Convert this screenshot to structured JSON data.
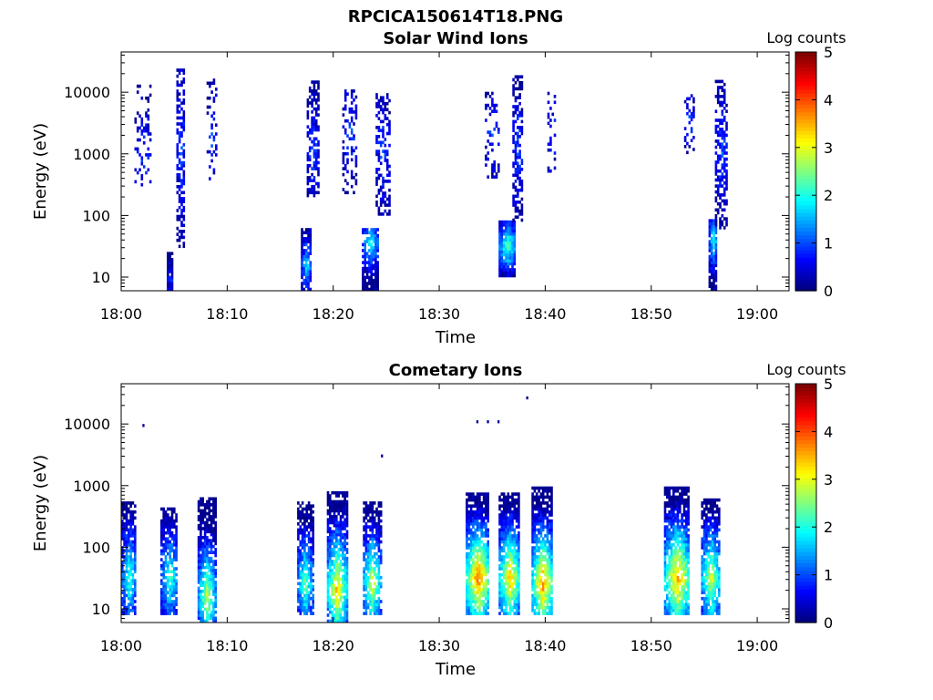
{
  "figure": {
    "title": "RPCICA150614T18.PNG"
  },
  "chart_data": [
    {
      "type": "heatmap",
      "title": "Solar Wind Ions",
      "xlabel": "Time",
      "ylabel": "Energy (eV)",
      "x_ticks": [
        "18:00",
        "18:10",
        "18:20",
        "18:30",
        "18:40",
        "18:50",
        "19:00"
      ],
      "x_range_min": [
        0,
        63
      ],
      "y_scale": "log",
      "y_ticks": [
        "10",
        "100",
        "1000",
        "10000"
      ],
      "y_tick_values": [
        10,
        100,
        1000,
        10000
      ],
      "y_range_eV": [
        6,
        45000
      ],
      "colorbar": {
        "title": "Log counts",
        "ticks": [
          "0",
          "1",
          "2",
          "3",
          "4",
          "5"
        ],
        "range": [
          0,
          5
        ],
        "colormap": "jet"
      },
      "bursts": [
        {
          "t_min": 2.0,
          "width_min": 1.5,
          "emin_eV": 300,
          "emax_eV": 12000,
          "peak_log": 1.0,
          "peak_eV": 1000,
          "density": 0.25
        },
        {
          "t_min": 4.6,
          "width_min": 0.6,
          "emin_eV": 6,
          "emax_eV": 25,
          "peak_log": 0.8,
          "peak_eV": 8,
          "density": 0.9
        },
        {
          "t_min": 5.6,
          "width_min": 0.8,
          "emin_eV": 30,
          "emax_eV": 22000,
          "peak_log": 1.0,
          "peak_eV": 1000,
          "density": 0.55
        },
        {
          "t_min": 8.5,
          "width_min": 0.9,
          "emin_eV": 300,
          "emax_eV": 18000,
          "peak_log": 1.0,
          "peak_eV": 2000,
          "density": 0.25
        },
        {
          "t_min": 17.4,
          "width_min": 0.9,
          "emin_eV": 6,
          "emax_eV": 60,
          "peak_log": 1.8,
          "peak_eV": 15,
          "density": 0.85
        },
        {
          "t_min": 18.0,
          "width_min": 1.0,
          "emin_eV": 200,
          "emax_eV": 15000,
          "peak_log": 1.0,
          "peak_eV": 1000,
          "density": 0.55
        },
        {
          "t_min": 21.5,
          "width_min": 1.3,
          "emin_eV": 200,
          "emax_eV": 10000,
          "peak_log": 1.0,
          "peak_eV": 2000,
          "density": 0.3
        },
        {
          "t_min": 23.4,
          "width_min": 1.4,
          "emin_eV": 6,
          "emax_eV": 60,
          "peak_log": 2.0,
          "peak_eV": 35,
          "density": 0.85
        },
        {
          "t_min": 24.6,
          "width_min": 1.2,
          "emin_eV": 100,
          "emax_eV": 9000,
          "peak_log": 1.0,
          "peak_eV": 1000,
          "density": 0.5
        },
        {
          "t_min": 35.0,
          "width_min": 1.4,
          "emin_eV": 400,
          "emax_eV": 10000,
          "peak_log": 1.0,
          "peak_eV": 2000,
          "density": 0.25
        },
        {
          "t_min": 36.4,
          "width_min": 1.6,
          "emin_eV": 10,
          "emax_eV": 80,
          "peak_log": 2.4,
          "peak_eV": 30,
          "density": 0.95
        },
        {
          "t_min": 37.4,
          "width_min": 1.0,
          "emin_eV": 80,
          "emax_eV": 18000,
          "peak_log": 1.0,
          "peak_eV": 1000,
          "density": 0.55
        },
        {
          "t_min": 40.6,
          "width_min": 0.8,
          "emin_eV": 500,
          "emax_eV": 10000,
          "peak_log": 1.0,
          "peak_eV": 2000,
          "density": 0.25
        },
        {
          "t_min": 53.6,
          "width_min": 1.0,
          "emin_eV": 1000,
          "emax_eV": 9000,
          "peak_log": 1.0,
          "peak_eV": 3000,
          "density": 0.25
        },
        {
          "t_min": 55.8,
          "width_min": 0.8,
          "emin_eV": 6,
          "emax_eV": 80,
          "peak_log": 2.0,
          "peak_eV": 40,
          "density": 0.85
        },
        {
          "t_min": 56.6,
          "width_min": 1.2,
          "emin_eV": 60,
          "emax_eV": 15000,
          "peak_log": 1.0,
          "peak_eV": 1000,
          "density": 0.55
        }
      ]
    },
    {
      "type": "heatmap",
      "title": "Cometary Ions",
      "xlabel": "Time",
      "ylabel": "Energy (eV)",
      "x_ticks": [
        "18:00",
        "18:10",
        "18:20",
        "18:30",
        "18:40",
        "18:50",
        "19:00"
      ],
      "x_range_min": [
        0,
        63
      ],
      "y_scale": "log",
      "y_ticks": [
        "10",
        "100",
        "1000",
        "10000"
      ],
      "y_tick_values": [
        10,
        100,
        1000,
        10000
      ],
      "y_range_eV": [
        6,
        45000
      ],
      "colorbar": {
        "title": "Log counts",
        "ticks": [
          "0",
          "1",
          "2",
          "3",
          "4",
          "5"
        ],
        "range": [
          0,
          5
        ],
        "colormap": "jet"
      },
      "bursts": [
        {
          "t_min": 0.7,
          "width_min": 1.4,
          "emin_eV": 8,
          "emax_eV": 500,
          "peak_log": 2.2,
          "peak_eV": 30,
          "density": 0.8
        },
        {
          "t_min": 4.5,
          "width_min": 1.6,
          "emin_eV": 8,
          "emax_eV": 400,
          "peak_log": 2.2,
          "peak_eV": 30,
          "density": 0.8
        },
        {
          "t_min": 8.0,
          "width_min": 1.6,
          "emin_eV": 6,
          "emax_eV": 600,
          "peak_log": 2.8,
          "peak_eV": 15,
          "density": 0.8
        },
        {
          "t_min": 17.3,
          "width_min": 1.4,
          "emin_eV": 8,
          "emax_eV": 500,
          "peak_log": 2.5,
          "peak_eV": 25,
          "density": 0.8
        },
        {
          "t_min": 20.3,
          "width_min": 1.8,
          "emin_eV": 6,
          "emax_eV": 800,
          "peak_log": 3.5,
          "peak_eV": 20,
          "density": 0.8
        },
        {
          "t_min": 23.6,
          "width_min": 1.6,
          "emin_eV": 8,
          "emax_eV": 500,
          "peak_log": 3.0,
          "peak_eV": 25,
          "density": 0.8
        },
        {
          "t_min": 33.6,
          "width_min": 2.2,
          "emin_eV": 8,
          "emax_eV": 700,
          "peak_log": 4.0,
          "peak_eV": 30,
          "density": 0.85
        },
        {
          "t_min": 36.6,
          "width_min": 2.0,
          "emin_eV": 8,
          "emax_eV": 700,
          "peak_log": 3.5,
          "peak_eV": 30,
          "density": 0.85
        },
        {
          "t_min": 39.7,
          "width_min": 2.0,
          "emin_eV": 8,
          "emax_eV": 900,
          "peak_log": 3.8,
          "peak_eV": 25,
          "density": 0.85
        },
        {
          "t_min": 52.4,
          "width_min": 2.4,
          "emin_eV": 8,
          "emax_eV": 900,
          "peak_log": 3.7,
          "peak_eV": 30,
          "density": 0.85
        },
        {
          "t_min": 55.6,
          "width_min": 1.8,
          "emin_eV": 8,
          "emax_eV": 600,
          "peak_log": 3.0,
          "peak_eV": 30,
          "density": 0.8
        }
      ],
      "isolated_points": [
        {
          "t_min": 2.0,
          "energy_eV": 10000,
          "log": 0.1
        },
        {
          "t_min": 24.5,
          "energy_eV": 3200,
          "log": 0.1
        },
        {
          "t_min": 33.5,
          "energy_eV": 11500,
          "log": 0.1
        },
        {
          "t_min": 34.5,
          "energy_eV": 11500,
          "log": 0.1
        },
        {
          "t_min": 35.5,
          "energy_eV": 11500,
          "log": 0.1
        },
        {
          "t_min": 38.2,
          "energy_eV": 28000,
          "log": 0.1
        }
      ]
    }
  ]
}
